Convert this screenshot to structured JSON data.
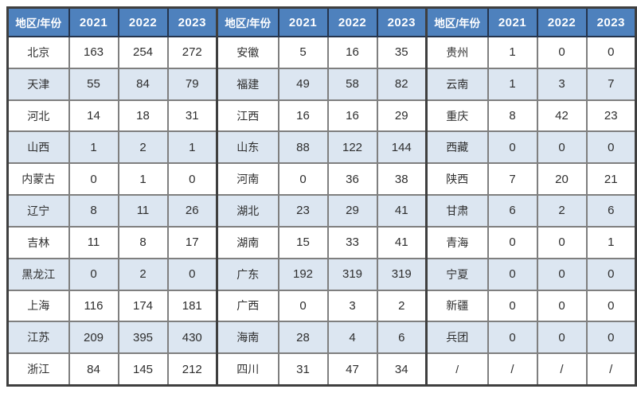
{
  "chart_data": {
    "type": "table",
    "title": "",
    "header": [
      "地区/年份",
      "2021",
      "2022",
      "2023"
    ],
    "groups": 3,
    "rows_per_group": 11,
    "records": [
      {
        "region": "北京",
        "values": [
          "163",
          "254",
          "272"
        ]
      },
      {
        "region": "天津",
        "values": [
          "55",
          "84",
          "79"
        ]
      },
      {
        "region": "河北",
        "values": [
          "14",
          "18",
          "31"
        ]
      },
      {
        "region": "山西",
        "values": [
          "1",
          "2",
          "1"
        ]
      },
      {
        "region": "内蒙古",
        "values": [
          "0",
          "1",
          "0"
        ]
      },
      {
        "region": "辽宁",
        "values": [
          "8",
          "11",
          "26"
        ]
      },
      {
        "region": "吉林",
        "values": [
          "11",
          "8",
          "17"
        ]
      },
      {
        "region": "黑龙江",
        "values": [
          "0",
          "2",
          "0"
        ]
      },
      {
        "region": "上海",
        "values": [
          "116",
          "174",
          "181"
        ]
      },
      {
        "region": "江苏",
        "values": [
          "209",
          "395",
          "430"
        ]
      },
      {
        "region": "浙江",
        "values": [
          "84",
          "145",
          "212"
        ]
      },
      {
        "region": "安徽",
        "values": [
          "5",
          "16",
          "35"
        ]
      },
      {
        "region": "福建",
        "values": [
          "49",
          "58",
          "82"
        ]
      },
      {
        "region": "江西",
        "values": [
          "16",
          "16",
          "29"
        ]
      },
      {
        "region": "山东",
        "values": [
          "88",
          "122",
          "144"
        ]
      },
      {
        "region": "河南",
        "values": [
          "0",
          "36",
          "38"
        ]
      },
      {
        "region": "湖北",
        "values": [
          "23",
          "29",
          "41"
        ]
      },
      {
        "region": "湖南",
        "values": [
          "15",
          "33",
          "41"
        ]
      },
      {
        "region": "广东",
        "values": [
          "192",
          "319",
          "319"
        ]
      },
      {
        "region": "广西",
        "values": [
          "0",
          "3",
          "2"
        ]
      },
      {
        "region": "海南",
        "values": [
          "28",
          "4",
          "6"
        ]
      },
      {
        "region": "四川",
        "values": [
          "31",
          "47",
          "34"
        ]
      },
      {
        "region": "贵州",
        "values": [
          "1",
          "0",
          "0"
        ]
      },
      {
        "region": "云南",
        "values": [
          "1",
          "3",
          "7"
        ]
      },
      {
        "region": "重庆",
        "values": [
          "8",
          "42",
          "23"
        ]
      },
      {
        "region": "西藏",
        "values": [
          "0",
          "0",
          "0"
        ]
      },
      {
        "region": "陕西",
        "values": [
          "7",
          "20",
          "21"
        ]
      },
      {
        "region": "甘肃",
        "values": [
          "6",
          "2",
          "6"
        ]
      },
      {
        "region": "青海",
        "values": [
          "0",
          "0",
          "1"
        ]
      },
      {
        "region": "宁夏",
        "values": [
          "0",
          "0",
          "0"
        ]
      },
      {
        "region": "新疆",
        "values": [
          "0",
          "0",
          "0"
        ]
      },
      {
        "region": "兵团",
        "values": [
          "0",
          "0",
          "0"
        ]
      },
      {
        "region": "/",
        "values": [
          "/",
          "/",
          "/"
        ]
      }
    ]
  },
  "colors": {
    "header_bg": "#4E81BD",
    "header_text": "#FFFFFF",
    "stripe_bg": "#DCE6F1",
    "row_bg": "#FFFFFF",
    "body_text": "#2E2E2E",
    "grid_border": "#7F7F7F",
    "frame_border": "#3F3F3F"
  }
}
